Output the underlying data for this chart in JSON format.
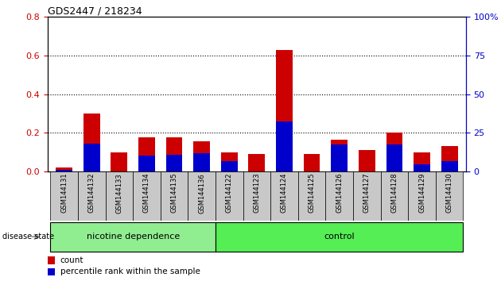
{
  "title": "GDS2447 / 218234",
  "samples": [
    "GSM144131",
    "GSM144132",
    "GSM144133",
    "GSM144134",
    "GSM144135",
    "GSM144136",
    "GSM144122",
    "GSM144123",
    "GSM144124",
    "GSM144125",
    "GSM144126",
    "GSM144127",
    "GSM144128",
    "GSM144129",
    "GSM144130"
  ],
  "count_values": [
    0.02,
    0.3,
    0.1,
    0.175,
    0.175,
    0.155,
    0.1,
    0.09,
    0.63,
    0.09,
    0.165,
    0.11,
    0.2,
    0.1,
    0.13
  ],
  "percentile_values": [
    0.01,
    0.145,
    0.0,
    0.08,
    0.085,
    0.095,
    0.055,
    0.0,
    0.26,
    0.0,
    0.14,
    0.0,
    0.14,
    0.035,
    0.055
  ],
  "groups": [
    "nicotine dependence",
    "nicotine dependence",
    "nicotine dependence",
    "nicotine dependence",
    "nicotine dependence",
    "nicotine dependence",
    "control",
    "control",
    "control",
    "control",
    "control",
    "control",
    "control",
    "control",
    "control"
  ],
  "bar_width": 0.6,
  "ylim_left": [
    0,
    0.8
  ],
  "ylim_right": [
    0,
    100
  ],
  "yticks_left": [
    0.0,
    0.2,
    0.4,
    0.6,
    0.8
  ],
  "yticks_right": [
    0,
    25,
    50,
    75,
    100
  ],
  "count_color": "#CC0000",
  "percentile_color": "#0000CC",
  "background_color": "#ffffff",
  "axis_color_left": "#CC0000",
  "axis_color_right": "#0000CC",
  "tick_bg_color": "#C8C8C8",
  "group_color_nicotine": "#90EE90",
  "group_color_control": "#55EE55",
  "nicotine_span": [
    0,
    5
  ],
  "control_span": [
    6,
    14
  ]
}
